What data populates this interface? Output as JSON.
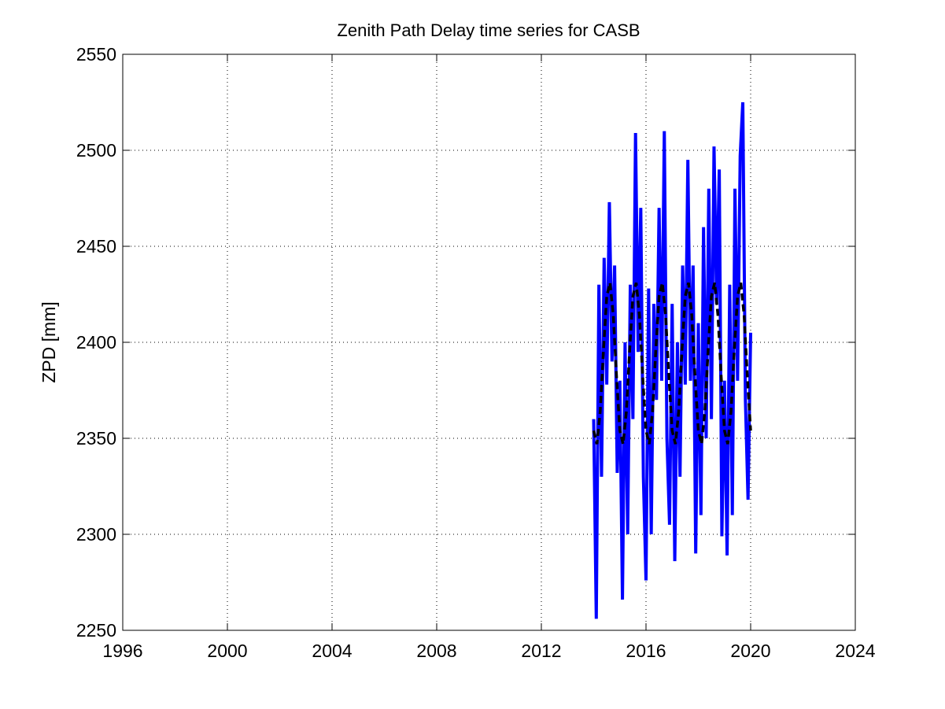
{
  "chart_data": {
    "type": "line",
    "title": "Zenith Path Delay time series for CASB",
    "ylabel": "ZPD [mm]",
    "xlim": [
      1996,
      2024
    ],
    "xticks": [
      1996,
      2000,
      2004,
      2008,
      2012,
      2016,
      2020,
      2024
    ],
    "ylim": [
      2250,
      2550
    ],
    "yticks": [
      2250,
      2300,
      2350,
      2400,
      2450,
      2500,
      2550
    ],
    "grid": true,
    "series": [
      {
        "color": "#0000ff",
        "style": "solid",
        "x": [
          2014.0,
          2014.1,
          2014.2,
          2014.3,
          2014.4,
          2014.5,
          2014.6,
          2014.7,
          2014.8,
          2014.9,
          2015.0,
          2015.1,
          2015.2,
          2015.3,
          2015.4,
          2015.5,
          2015.6,
          2015.7,
          2015.8,
          2015.9,
          2016.0,
          2016.1,
          2016.2,
          2016.3,
          2016.4,
          2016.5,
          2016.6,
          2016.7,
          2016.8,
          2016.9,
          2017.0,
          2017.1,
          2017.2,
          2017.3,
          2017.4,
          2017.5,
          2017.6,
          2017.7,
          2017.8,
          2017.9,
          2018.0,
          2018.1,
          2018.2,
          2018.3,
          2018.4,
          2018.5,
          2018.6,
          2018.7,
          2018.8,
          2018.9,
          2019.0,
          2019.1,
          2019.2,
          2019.3,
          2019.4,
          2019.5,
          2019.6,
          2019.7,
          2019.8,
          2019.9,
          2020.0
        ],
        "values": [
          2360,
          2256,
          2430,
          2330,
          2444,
          2378,
          2473,
          2390,
          2440,
          2332,
          2380,
          2266,
          2400,
          2300,
          2430,
          2360,
          2509,
          2395,
          2470,
          2330,
          2276,
          2428,
          2300,
          2420,
          2370,
          2470,
          2380,
          2510,
          2350,
          2305,
          2420,
          2286,
          2400,
          2330,
          2440,
          2378,
          2495,
          2380,
          2440,
          2290,
          2410,
          2310,
          2460,
          2350,
          2480,
          2360,
          2502,
          2420,
          2490,
          2299,
          2380,
          2289,
          2430,
          2310,
          2480,
          2380,
          2497,
          2525,
          2370,
          2318,
          2405
        ]
      },
      {
        "color": "#000000",
        "style": "dashed",
        "x": [
          2014.0,
          2014.125,
          2014.25,
          2014.375,
          2014.5,
          2014.625,
          2014.75,
          2014.875,
          2015.0,
          2015.125,
          2015.25,
          2015.375,
          2015.5,
          2015.625,
          2015.75,
          2015.875,
          2016.0,
          2016.125,
          2016.25,
          2016.375,
          2016.5,
          2016.625,
          2016.75,
          2016.875,
          2017.0,
          2017.125,
          2017.25,
          2017.375,
          2017.5,
          2017.625,
          2017.75,
          2017.875,
          2018.0,
          2018.125,
          2018.25,
          2018.375,
          2018.5,
          2018.625,
          2018.75,
          2018.875,
          2019.0,
          2019.125,
          2019.25,
          2019.375,
          2019.5,
          2019.625,
          2019.75,
          2019.875,
          2020.0
        ],
        "values": [
          2354,
          2347,
          2364,
          2396,
          2424,
          2431,
          2414,
          2382,
          2354,
          2347,
          2364,
          2396,
          2424,
          2431,
          2414,
          2382,
          2354,
          2347,
          2364,
          2396,
          2424,
          2431,
          2414,
          2382,
          2354,
          2347,
          2364,
          2396,
          2424,
          2431,
          2414,
          2382,
          2354,
          2347,
          2364,
          2396,
          2424,
          2431,
          2414,
          2382,
          2354,
          2347,
          2364,
          2396,
          2424,
          2431,
          2414,
          2382,
          2354
        ]
      }
    ]
  }
}
